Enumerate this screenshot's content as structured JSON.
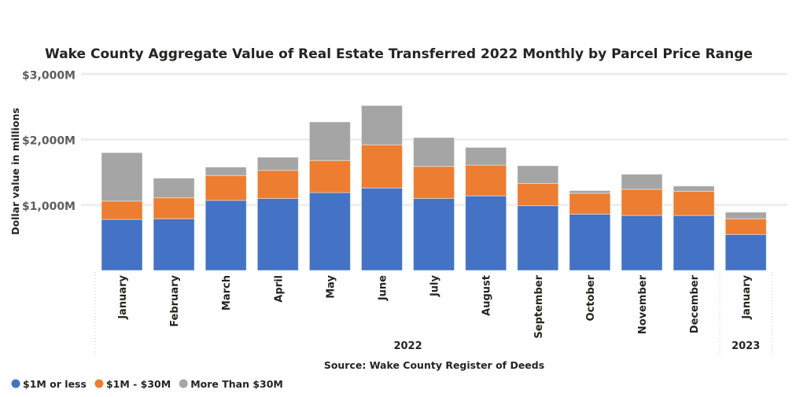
{
  "chart_data": {
    "type": "bar",
    "stacked": true,
    "title": "Wake County Aggregate Value of Real Estate Transferred 2022 Monthly by Parcel Price Range",
    "ylabel": "Dollar value in millions",
    "xlabel": "",
    "source": "Source: Wake County Register of Deeds",
    "ylim": [
      0,
      3000
    ],
    "yticks": [
      1000,
      2000,
      3000
    ],
    "ytick_labels": [
      "$1,000M",
      "$2,000M",
      "$3,000M"
    ],
    "grid": true,
    "legend_position": "bottom-left",
    "categories": [
      "January",
      "February",
      "March",
      "April",
      "May",
      "June",
      "July",
      "August",
      "September",
      "October",
      "November",
      "December",
      "January"
    ],
    "groups": [
      {
        "label": "2022",
        "count": 12
      },
      {
        "label": "2023",
        "count": 1
      }
    ],
    "series": [
      {
        "name": "$1M or less",
        "color": "#4472c4",
        "values": [
          780,
          790,
          1070,
          1100,
          1190,
          1260,
          1100,
          1140,
          990,
          860,
          840,
          840,
          550
        ]
      },
      {
        "name": "$1M - $30M",
        "color": "#ed7d31",
        "values": [
          280,
          320,
          380,
          430,
          490,
          660,
          490,
          470,
          340,
          320,
          400,
          370,
          240
        ]
      },
      {
        "name": "More Than $30M",
        "color": "#a5a5a5",
        "values": [
          740,
          300,
          130,
          200,
          590,
          600,
          440,
          270,
          270,
          40,
          230,
          80,
          100
        ]
      }
    ]
  }
}
